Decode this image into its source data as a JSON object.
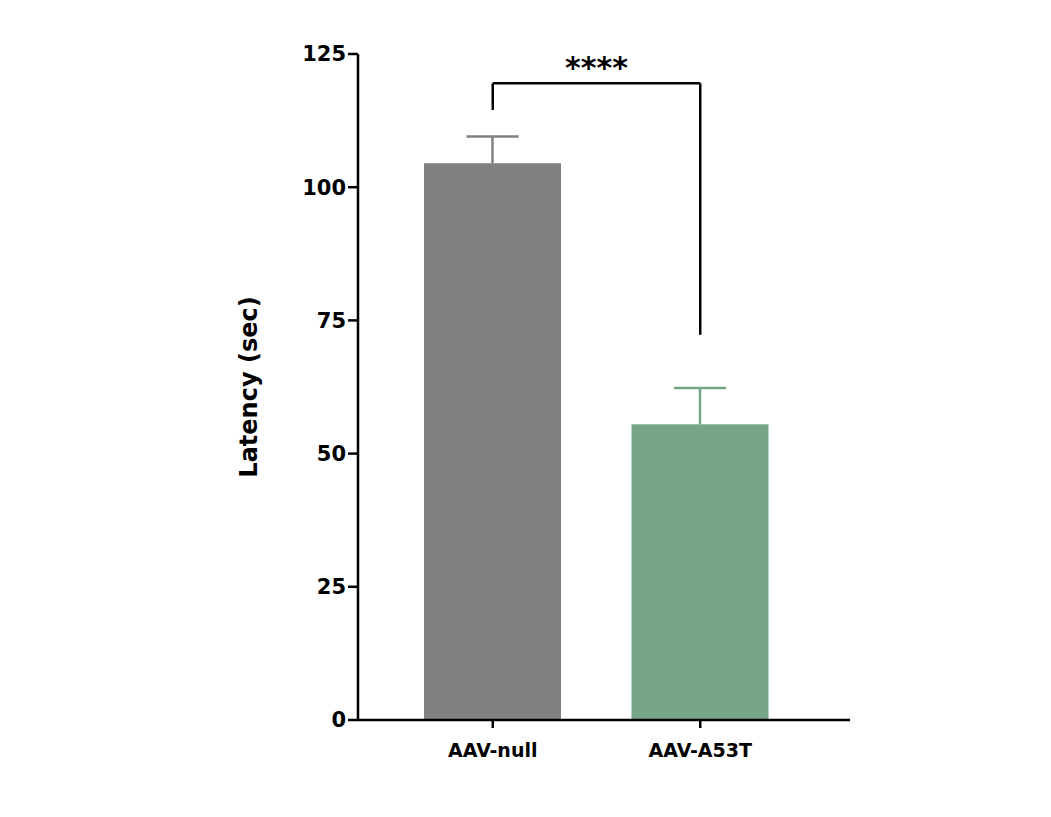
{
  "chart_data": {
    "type": "bar",
    "categories": [
      "AAV-null",
      "AAV-A53T"
    ],
    "values": [
      104.5,
      55.5
    ],
    "errors": [
      5,
      6.8
    ],
    "colors": [
      "#808080",
      "#76a687"
    ],
    "ylabel": "Latency (sec)",
    "ylim": [
      0,
      125
    ],
    "yticks": [
      0,
      25,
      50,
      75,
      100,
      125
    ],
    "annotations": [
      {
        "text": "****",
        "between": [
          "AAV-null",
          "AAV-A53T"
        ]
      }
    ]
  }
}
